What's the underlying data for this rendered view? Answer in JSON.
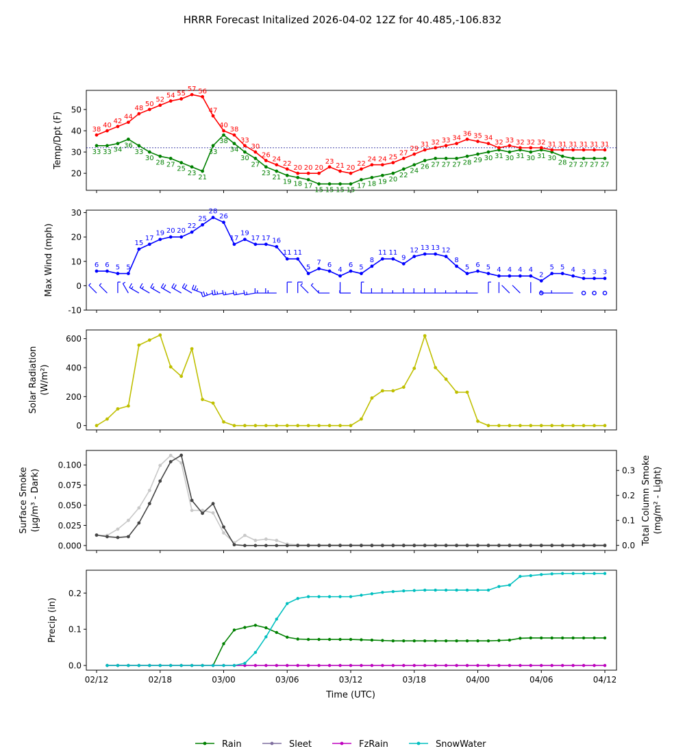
{
  "figure_title": "HRRR Forecast Initalized 2026-04-02 12Z for 40.485,-106.832",
  "xlabel": "Time (UTC)",
  "x_ticks": [
    "02/12",
    "02/18",
    "03/00",
    "03/06",
    "03/12",
    "03/18",
    "04/00",
    "04/06",
    "04/12"
  ],
  "colors": {
    "temp": "#ff0000",
    "dewpoint": "#008000",
    "wind": "#0000ff",
    "solar": "#bfbf00",
    "smoke_dark": "#444444",
    "smoke_light": "#c8c8c8",
    "rain": "#008000",
    "sleet": "#7f6f9f",
    "fzrain": "#bf00bf",
    "snowwater": "#00bfbf",
    "freezing_line": "#00008b"
  },
  "legend": {
    "rain": "Rain",
    "sleet": "Sleet",
    "fzrain": "FzRain",
    "snowwater": "SnowWater"
  },
  "chart_data": [
    {
      "type": "line",
      "id": "temperature",
      "ylabel": "Temp/Dpt (F)",
      "ylim": [
        12,
        59
      ],
      "yticks": [
        20,
        30,
        40,
        50
      ],
      "freezing_line": 32,
      "x_hours": [
        0,
        1,
        2,
        3,
        4,
        5,
        6,
        7,
        8,
        9,
        10,
        11,
        12,
        13,
        14,
        15,
        16,
        17,
        18,
        19,
        20,
        21,
        22,
        23,
        24,
        25,
        26,
        27,
        28,
        29,
        30,
        31,
        32,
        33,
        34,
        35,
        36,
        37,
        38,
        39,
        40,
        41,
        42,
        43,
        44,
        45,
        46,
        47,
        48
      ],
      "series": [
        {
          "name": "Temperature",
          "values": [
            38,
            40,
            42,
            44,
            48,
            50,
            52,
            54,
            55,
            57,
            56,
            47,
            40,
            38,
            33,
            30,
            26,
            24,
            22,
            20,
            20,
            20,
            23,
            21,
            20,
            22,
            24,
            24,
            25,
            27,
            29,
            31,
            32,
            33,
            34,
            36,
            35,
            34,
            32,
            33,
            32,
            32,
            32,
            31,
            31,
            31,
            31,
            31,
            31
          ]
        },
        {
          "name": "Dewpoint",
          "values": [
            33,
            33,
            34,
            36,
            33,
            30,
            28,
            27,
            25,
            23,
            21,
            33,
            38,
            34,
            30,
            27,
            23,
            21,
            19,
            18,
            17,
            15,
            15,
            15,
            15,
            17,
            18,
            19,
            20,
            22,
            24,
            26,
            27,
            27,
            27,
            28,
            29,
            30,
            31,
            30,
            31,
            30,
            31,
            30,
            28,
            27,
            27,
            27,
            27
          ]
        }
      ]
    },
    {
      "type": "line",
      "id": "wind",
      "ylabel": "Max Wind (mph)",
      "ylim": [
        -10,
        31
      ],
      "yticks": [
        -10,
        0,
        10,
        20,
        30
      ],
      "x_hours": [
        0,
        1,
        2,
        3,
        4,
        5,
        6,
        7,
        8,
        9,
        10,
        11,
        12,
        13,
        14,
        15,
        16,
        17,
        18,
        19,
        20,
        21,
        22,
        23,
        24,
        25,
        26,
        27,
        28,
        29,
        30,
        31,
        32,
        33,
        34,
        35,
        36,
        37,
        38,
        39,
        40,
        41,
        42,
        43,
        44,
        45,
        46,
        47,
        48
      ],
      "series": [
        {
          "name": "Max Wind",
          "values": [
            6,
            6,
            5,
            5,
            15,
            17,
            19,
            20,
            20,
            22,
            25,
            28,
            26,
            17,
            19,
            17,
            17,
            16,
            11,
            11,
            5,
            7,
            6,
            4,
            6,
            5,
            8,
            11,
            11,
            9,
            12,
            13,
            13,
            12,
            8,
            5,
            6,
            5,
            4,
            4,
            4,
            4,
            2,
            5,
            5,
            4,
            3,
            3,
            3
          ]
        }
      ],
      "barb_level": -3,
      "barb_dirs_deg": [
        315,
        315,
        0,
        330,
        300,
        300,
        300,
        300,
        300,
        300,
        290,
        250,
        260,
        260,
        260,
        260,
        270,
        270,
        0,
        0,
        315,
        315,
        270,
        0,
        270,
        0,
        270,
        270,
        270,
        270,
        270,
        270,
        270,
        270,
        270,
        270,
        270,
        0,
        0,
        315,
        315,
        0,
        0,
        270,
        270,
        270,
        0,
        0,
        0
      ]
    },
    {
      "type": "line",
      "id": "solar",
      "ylabel": "Solar Radiation",
      "ylabel_units": "(W/m²)",
      "ylim": [
        -30,
        660
      ],
      "yticks": [
        0,
        200,
        400,
        600
      ],
      "x_hours": [
        0,
        1,
        2,
        3,
        4,
        5,
        6,
        7,
        8,
        9,
        10,
        11,
        12,
        13,
        14,
        15,
        16,
        17,
        18,
        19,
        20,
        21,
        22,
        23,
        24,
        25,
        26,
        27,
        28,
        29,
        30,
        31,
        32,
        33,
        34,
        35,
        36,
        37,
        38,
        39,
        40,
        41,
        42,
        43,
        44,
        45,
        46,
        47,
        48
      ],
      "series": [
        {
          "name": "Solar Radiation",
          "values": [
            0,
            45,
            115,
            135,
            555,
            590,
            625,
            405,
            340,
            530,
            180,
            155,
            25,
            0,
            0,
            0,
            0,
            0,
            0,
            0,
            0,
            0,
            0,
            0,
            0,
            45,
            190,
            240,
            240,
            265,
            395,
            620,
            400,
            320,
            230,
            230,
            30,
            0,
            0,
            0,
            0,
            0,
            0,
            0,
            0,
            0,
            0,
            0,
            0
          ]
        }
      ]
    },
    {
      "type": "line",
      "id": "smoke",
      "ylabel": "Surface Smoke",
      "ylabel_units": "(μg/m³ - Dark)",
      "ylabel_right": "Total Column Smoke",
      "ylabel_right_units": "(mg/m² - Light)",
      "ylim": [
        -0.006,
        0.118
      ],
      "yticks": [
        0.0,
        0.025,
        0.05,
        0.075,
        0.1
      ],
      "yticks_labels": [
        "0.000",
        "0.025",
        "0.050",
        "0.075",
        "0.100"
      ],
      "ylim_right": [
        -0.02,
        0.38
      ],
      "yticks_right": [
        0.0,
        0.1,
        0.2,
        0.3
      ],
      "yticks_right_labels": [
        "0.0",
        "0.1",
        "0.2",
        "0.3"
      ],
      "x_hours": [
        0,
        1,
        2,
        3,
        4,
        5,
        6,
        7,
        8,
        9,
        10,
        11,
        12,
        13,
        14,
        15,
        16,
        17,
        18,
        19,
        20,
        21,
        22,
        23,
        24,
        25,
        26,
        27,
        28,
        29,
        30,
        31,
        32,
        33,
        34,
        35,
        36,
        37,
        38,
        39,
        40,
        41,
        42,
        43,
        44,
        45,
        46,
        47,
        48
      ],
      "series": [
        {
          "name": "Surface Smoke (Dark)",
          "axis": "left",
          "values": [
            0.013,
            0.011,
            0.01,
            0.011,
            0.028,
            0.052,
            0.08,
            0.104,
            0.112,
            0.056,
            0.04,
            0.052,
            0.023,
            0.001,
            0,
            0,
            0,
            0,
            0,
            0,
            0,
            0,
            0,
            0,
            0,
            0,
            0,
            0,
            0,
            0,
            0,
            0,
            0,
            0,
            0,
            0,
            0,
            0,
            0,
            0,
            0,
            0,
            0,
            0,
            0,
            0,
            0,
            0,
            0
          ]
        },
        {
          "name": "Total Column Smoke (Light)",
          "axis": "right",
          "values": [
            0.04,
            0.04,
            0.065,
            0.1,
            0.15,
            0.22,
            0.32,
            0.36,
            0.33,
            0.14,
            0.14,
            0.13,
            0.05,
            0.01,
            0.04,
            0.02,
            0.025,
            0.02,
            0.005,
            0.002,
            0.002,
            0.002,
            0.002,
            0.002,
            0.002,
            0.002,
            0.002,
            0.002,
            0.002,
            0.002,
            0.002,
            0.002,
            0.002,
            0.002,
            0.002,
            0.002,
            0.002,
            0.002,
            0.002,
            0.002,
            0.002,
            0.002,
            0.002,
            0.002,
            0.002,
            0.002,
            0.002,
            0.002,
            0.002
          ]
        }
      ]
    },
    {
      "type": "line",
      "id": "precip",
      "ylabel": "Precip (in)",
      "ylim": [
        -0.013,
        0.263
      ],
      "yticks": [
        0.0,
        0.1,
        0.2
      ],
      "yticks_labels": [
        "0.0",
        "0.1",
        "0.2"
      ],
      "x_hours": [
        1,
        2,
        3,
        4,
        5,
        6,
        7,
        8,
        9,
        10,
        11,
        12,
        13,
        14,
        15,
        16,
        17,
        18,
        19,
        20,
        21,
        22,
        23,
        24,
        25,
        26,
        27,
        28,
        29,
        30,
        31,
        32,
        33,
        34,
        35,
        36,
        37,
        38,
        39,
        40,
        41,
        42,
        43,
        44,
        45,
        46,
        47,
        48
      ],
      "series": [
        {
          "name": "Rain",
          "values": [
            0,
            0,
            0,
            0,
            0,
            0,
            0,
            0,
            0,
            0,
            0,
            0.06,
            0.098,
            0.105,
            0.111,
            0.104,
            0.091,
            0.078,
            0.073,
            0.072,
            0.072,
            0.072,
            0.072,
            0.072,
            0.071,
            0.07,
            0.069,
            0.068,
            0.068,
            0.068,
            0.068,
            0.068,
            0.068,
            0.068,
            0.068,
            0.068,
            0.068,
            0.069,
            0.07,
            0.075,
            0.076,
            0.076,
            0.076,
            0.076,
            0.076,
            0.076,
            0.076,
            0.076
          ]
        },
        {
          "name": "Sleet",
          "values": [
            0,
            0,
            0,
            0,
            0,
            0,
            0,
            0,
            0,
            0,
            0,
            0,
            0,
            0,
            0,
            0,
            0,
            0,
            0,
            0,
            0,
            0,
            0,
            0,
            0,
            0,
            0,
            0,
            0,
            0,
            0,
            0,
            0,
            0,
            0,
            0,
            0,
            0,
            0,
            0,
            0,
            0,
            0,
            0,
            0,
            0,
            0,
            0
          ]
        },
        {
          "name": "FzRain",
          "values": [
            0,
            0,
            0,
            0,
            0,
            0,
            0,
            0,
            0,
            0,
            0,
            0,
            0,
            0,
            0,
            0,
            0,
            0,
            0,
            0,
            0,
            0,
            0,
            0,
            0,
            0,
            0,
            0,
            0,
            0,
            0,
            0,
            0,
            0,
            0,
            0,
            0,
            0,
            0,
            0,
            0,
            0,
            0,
            0,
            0,
            0,
            0,
            0
          ]
        },
        {
          "name": "SnowWater",
          "values": [
            0,
            0,
            0,
            0,
            0,
            0,
            0,
            0,
            0,
            0,
            0,
            0,
            0,
            0.006,
            0.036,
            0.079,
            0.128,
            0.171,
            0.185,
            0.19,
            0.19,
            0.19,
            0.19,
            0.19,
            0.194,
            0.198,
            0.202,
            0.204,
            0.206,
            0.207,
            0.208,
            0.208,
            0.208,
            0.208,
            0.208,
            0.208,
            0.208,
            0.218,
            0.222,
            0.246,
            0.248,
            0.251,
            0.253,
            0.254,
            0.254,
            0.254,
            0.254,
            0.254
          ]
        }
      ]
    }
  ]
}
